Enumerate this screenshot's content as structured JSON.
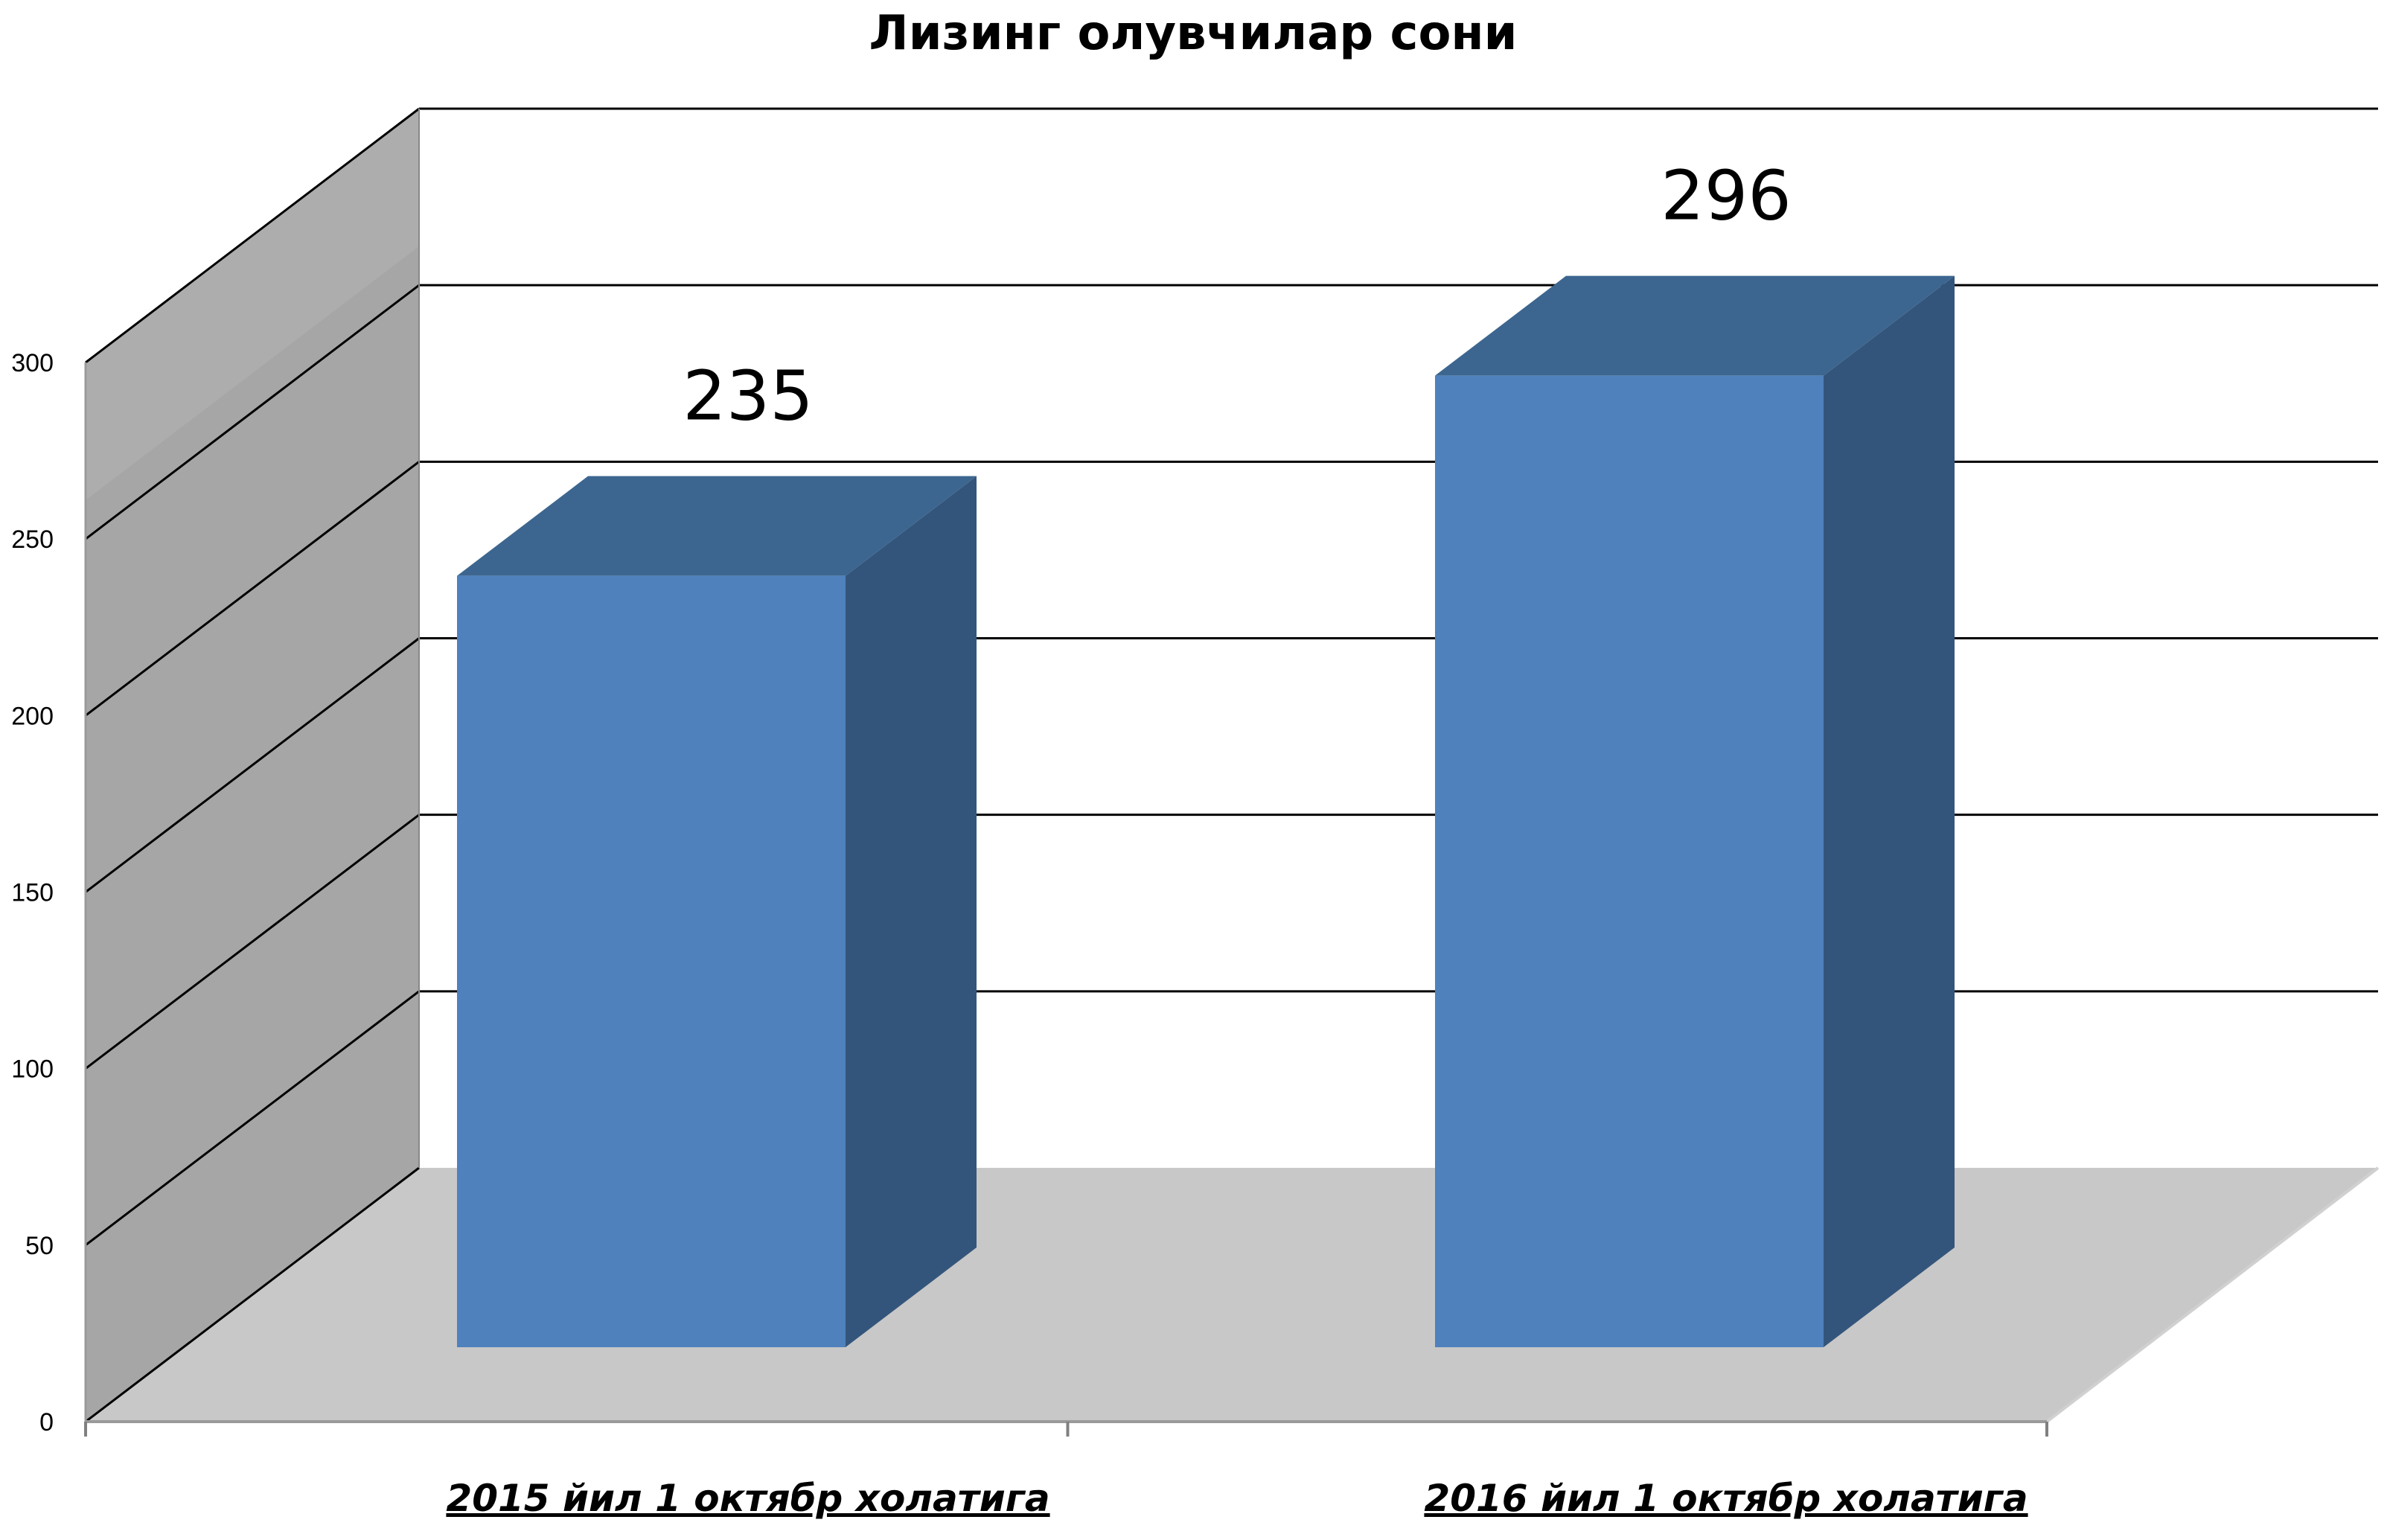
{
  "chart_data": {
    "type": "bar",
    "title": "Лизинг олувчилар сони",
    "categories": [
      "2015 йил 1 октябр холатига",
      "2016 йил 1 октябр холатига"
    ],
    "values": [
      235,
      296
    ],
    "data_labels": [
      "235",
      "296"
    ],
    "ylim": [
      0,
      300
    ],
    "yticks": [
      0,
      50,
      100,
      150,
      200,
      250,
      300
    ],
    "ytick_labels": [
      "0",
      "50",
      "100",
      "150",
      "200",
      "250",
      "300"
    ],
    "grid": true,
    "legend": "none",
    "three_d": true,
    "colors": {
      "bar_front": "#4f81bd",
      "bar_top": "#3c668f",
      "bar_side": "#34557b",
      "wall": "#a6a6a6",
      "floor": "#c8c8c8"
    }
  }
}
